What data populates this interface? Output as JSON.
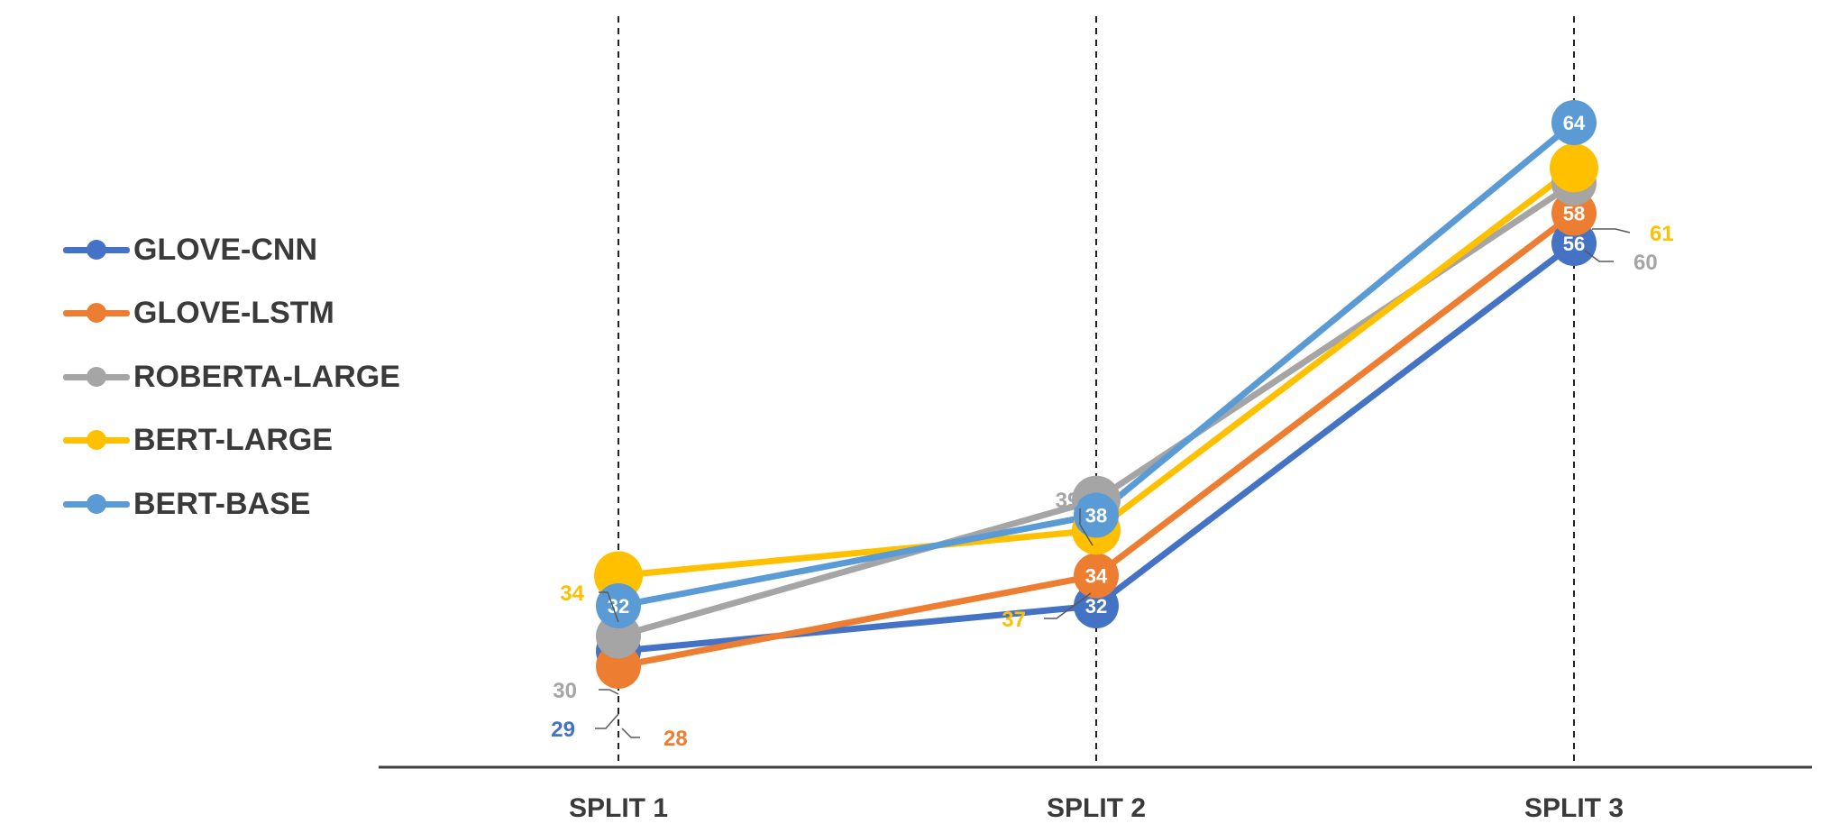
{
  "chart_data": {
    "type": "line",
    "categories": [
      "SPLIT 1",
      "SPLIT 2",
      "SPLIT 3"
    ],
    "ylim": [
      20,
      70
    ],
    "grid": false,
    "legend_position": "left",
    "series": [
      {
        "name": "GLOVE-CNN",
        "color": "#4472C4",
        "values": [
          29,
          32,
          56
        ]
      },
      {
        "name": "GLOVE-LSTM",
        "color": "#ED7D31",
        "values": [
          28,
          34,
          58
        ]
      },
      {
        "name": "ROBERTA-LARGE",
        "color": "#A5A5A5",
        "values": [
          30,
          39,
          60
        ]
      },
      {
        "name": "BERT-LARGE",
        "color": "#FFC000",
        "values": [
          34,
          37,
          61
        ]
      },
      {
        "name": "BERT-BASE",
        "color": "#5B9BD5",
        "values": [
          32,
          38,
          64
        ]
      }
    ]
  }
}
